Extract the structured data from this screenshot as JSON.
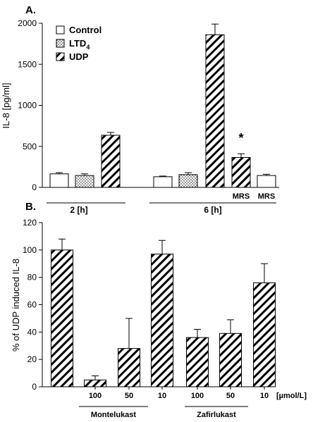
{
  "chart_data": [
    {
      "panel": "A.",
      "type": "bar",
      "ylabel": "IL-8 [pg/ml]",
      "ylim": [
        0,
        2000
      ],
      "yticks": [
        0,
        500,
        1000,
        1500,
        2000
      ],
      "legend": [
        {
          "label": "Control",
          "pattern": "control"
        },
        {
          "label": "LTD",
          "sub": "4",
          "pattern": "ltd"
        },
        {
          "label": "UDP",
          "pattern": "udp"
        }
      ],
      "bars": [
        {
          "label": "",
          "value": 165,
          "error": 15,
          "pattern": "control"
        },
        {
          "label": "",
          "value": 145,
          "error": 20,
          "pattern": "ltd"
        },
        {
          "label": "",
          "value": 635,
          "error": 35,
          "pattern": "udp"
        },
        {
          "label": "",
          "value": 130,
          "error": 8,
          "pattern": "control"
        },
        {
          "label": "",
          "value": 155,
          "error": 25,
          "pattern": "ltd"
        },
        {
          "label": "",
          "value": 1860,
          "error": 130,
          "pattern": "udp"
        },
        {
          "label": "MRS",
          "value": 365,
          "error": 45,
          "pattern": "udp",
          "star": "*"
        },
        {
          "label": "MRS",
          "value": 145,
          "error": 15,
          "pattern": "control"
        }
      ],
      "groups": [
        {
          "label": "2 [h]",
          "from": 0,
          "to": 2
        },
        {
          "label": "6 [h]",
          "from": 3,
          "to": 7
        }
      ]
    },
    {
      "panel": "B.",
      "type": "bar",
      "ylabel": "% of UDP induced IL-8",
      "ylim": [
        0,
        120
      ],
      "yticks": [
        0,
        20,
        40,
        60,
        80,
        100,
        120
      ],
      "bars": [
        {
          "label": "",
          "value": 100,
          "error": 8
        },
        {
          "label": "100",
          "value": 5,
          "error": 3
        },
        {
          "label": "50",
          "value": 28,
          "error": 22
        },
        {
          "label": "10",
          "value": 97,
          "error": 10
        },
        {
          "label": "100",
          "value": 36,
          "error": 6
        },
        {
          "label": "50",
          "value": 39,
          "error": 10
        },
        {
          "label": "10",
          "value": 76,
          "error": 14
        }
      ],
      "unit": "[µmol/L]",
      "groups": [
        {
          "label": "Montelukast",
          "from": 1,
          "to": 3
        },
        {
          "label": "Zafirlukast",
          "from": 4,
          "to": 6
        }
      ]
    }
  ]
}
